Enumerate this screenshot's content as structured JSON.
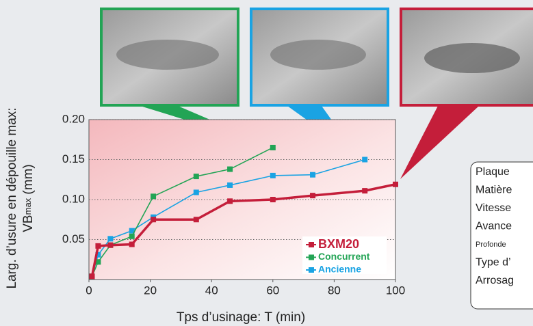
{
  "chart_data": {
    "type": "line",
    "xlabel": "Tps d’usinage: T (min)",
    "ylabel": "Larg. d’usure en dépouille max:",
    "ylabel2": [
      "VB",
      "max",
      " (mm)"
    ],
    "xlim": [
      0,
      100
    ],
    "xticks": [
      0,
      20,
      40,
      60,
      80,
      100
    ],
    "ylim": [
      0,
      0.2
    ],
    "yticks": [
      0.05,
      {
        "value": 0.1,
        "label": "0.10"
      },
      0.15,
      {
        "value": 0.2,
        "label": "0.20"
      }
    ],
    "grid": true,
    "legend": "lower right",
    "series": [
      {
        "name": "BXM20",
        "color": "#c41e3a",
        "x": [
          1,
          3,
          7,
          14,
          21,
          35,
          46,
          60,
          73,
          90,
          100
        ],
        "values": [
          0.004,
          0.042,
          0.043,
          0.044,
          0.075,
          0.075,
          0.098,
          0.1,
          0.105,
          0.111,
          0.119
        ]
      },
      {
        "name": "Concurrent",
        "color": "#22a455",
        "x": [
          1,
          3,
          7,
          14,
          21,
          35,
          46,
          60
        ],
        "values": [
          0.004,
          0.022,
          0.043,
          0.054,
          0.104,
          0.129,
          0.138,
          0.165
        ]
      },
      {
        "name": "Ancienne",
        "color": "#1aa3e3",
        "x": [
          1,
          3,
          7,
          14,
          21,
          35,
          46,
          60,
          73,
          90
        ],
        "values": [
          0.004,
          0.031,
          0.051,
          0.061,
          0.078,
          0.109,
          0.118,
          0.13,
          0.131,
          0.15
        ]
      }
    ],
    "info_box": [
      "Plaque",
      "Matière",
      "Vitesse",
      "Avance",
      "Profonde",
      "Type d’",
      "Arrosag"
    ]
  }
}
